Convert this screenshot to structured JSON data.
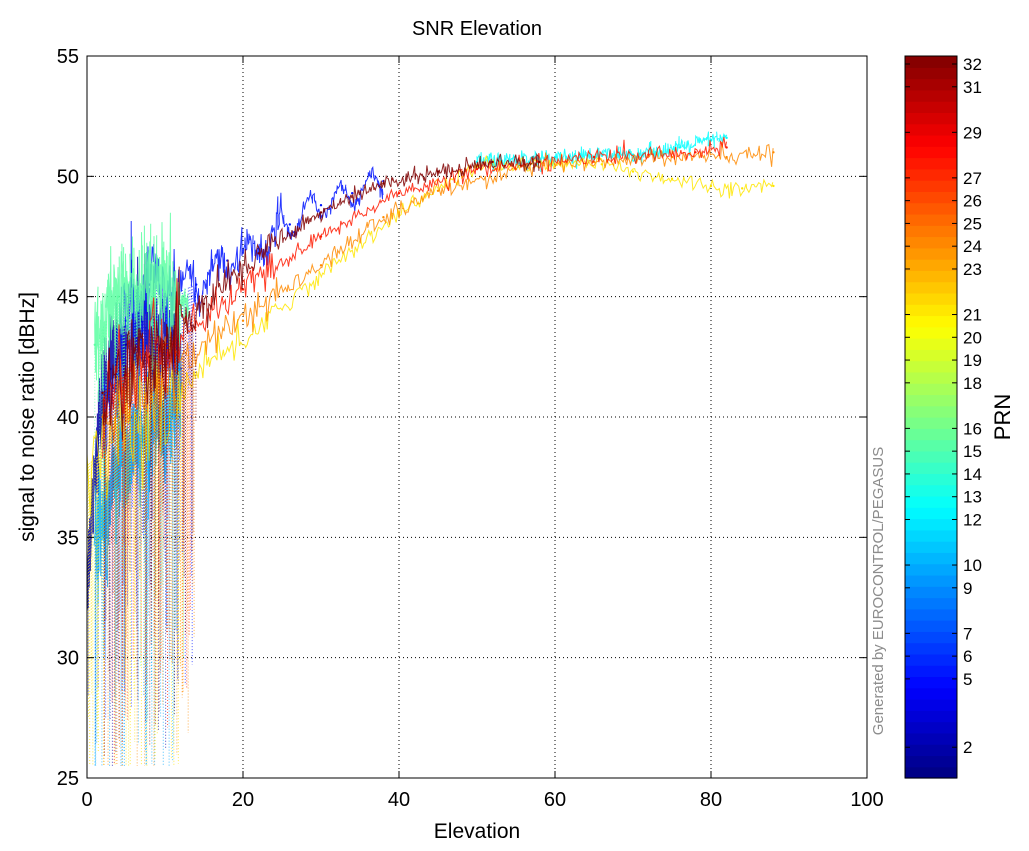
{
  "chart_data": {
    "type": "scatter",
    "title": "SNR Elevation",
    "xlabel": "Elevation",
    "ylabel": "signal to noise ratio  [dBHz]",
    "xlim": [
      0,
      100
    ],
    "ylim": [
      25,
      55
    ],
    "xticks": [
      "0",
      "20",
      "40",
      "60",
      "80",
      "100"
    ],
    "yticks": [
      "25",
      "30",
      "35",
      "40",
      "45",
      "50",
      "55"
    ],
    "grid": true,
    "watermark": "Generated by EUROCONTROL/PEGASUS",
    "colorbar": {
      "label": "PRN",
      "range": [
        1,
        32
      ],
      "colormap": "jet",
      "tick_labels": [
        "2",
        "5",
        "6",
        "7",
        "9",
        "10",
        "12",
        "13",
        "14",
        "15",
        "16",
        "18",
        "19",
        "20",
        "21",
        "23",
        "24",
        "25",
        "26",
        "27",
        "29",
        "31",
        "32"
      ]
    },
    "series": [
      {
        "prn": 2,
        "color": "#0000a8",
        "x": [
          0,
          1,
          2,
          3,
          5,
          7,
          9,
          11,
          12
        ],
        "y": [
          33,
          38,
          41,
          42,
          43,
          44,
          43,
          43,
          42
        ],
        "trend": "dense"
      },
      {
        "prn": 5,
        "color": "#0014ff",
        "x": [
          2,
          5,
          8,
          10,
          14,
          18,
          22,
          26,
          30,
          34,
          38
        ],
        "y": [
          40,
          44,
          45.5,
          45,
          45.5,
          46.5,
          47,
          48,
          48.8,
          49.3,
          49.8
        ],
        "trend": "oscillating"
      },
      {
        "prn": 10,
        "color": "#00a8ff",
        "x": [
          1,
          4,
          7,
          10,
          12
        ],
        "y": [
          35,
          38,
          39,
          40,
          41
        ],
        "trend": "noisy"
      },
      {
        "prn": 12,
        "color": "#00ffff",
        "x": [
          50,
          60,
          70,
          76,
          80,
          82
        ],
        "y": [
          50.6,
          50.8,
          50.9,
          51.2,
          51.5,
          51.6
        ],
        "trend": "line"
      },
      {
        "prn": 15,
        "color": "#5cffa2",
        "x": [
          1,
          4,
          7,
          10,
          13
        ],
        "y": [
          43,
          45,
          45.3,
          45.2,
          44.5
        ],
        "trend": "noisy"
      },
      {
        "prn": 20,
        "color": "#ffe600",
        "x": [
          0,
          40,
          50,
          60,
          66,
          70,
          75,
          80,
          84,
          88
        ],
        "y": [
          38,
          48.5,
          50.4,
          50.5,
          50.5,
          50.2,
          49.9,
          49.6,
          49.5,
          49.6
        ],
        "trend": "line"
      },
      {
        "prn": 24,
        "color": "#ff8a00",
        "x": [
          2,
          10,
          20,
          30,
          38,
          45,
          55,
          65,
          75,
          82,
          88
        ],
        "y": [
          40,
          42,
          44,
          46.3,
          48.3,
          49.4,
          50.3,
          50.6,
          50.8,
          50.8,
          51
        ],
        "trend": "line"
      },
      {
        "prn": 29,
        "color": "#ff1a00",
        "x": [
          2,
          10,
          20,
          30,
          40,
          50,
          58,
          65,
          72,
          78,
          82
        ],
        "y": [
          41,
          43,
          45.3,
          47.5,
          49.3,
          50.3,
          50.6,
          50.8,
          50.9,
          51,
          51.2
        ],
        "trend": "line"
      },
      {
        "prn": 32,
        "color": "#800000",
        "x": [
          2,
          8,
          15,
          22,
          30,
          38,
          45,
          52,
          58
        ],
        "y": [
          41,
          42.5,
          44.7,
          46.8,
          48.5,
          49.7,
          50.2,
          50.6,
          50.6
        ],
        "trend": "line"
      }
    ]
  }
}
